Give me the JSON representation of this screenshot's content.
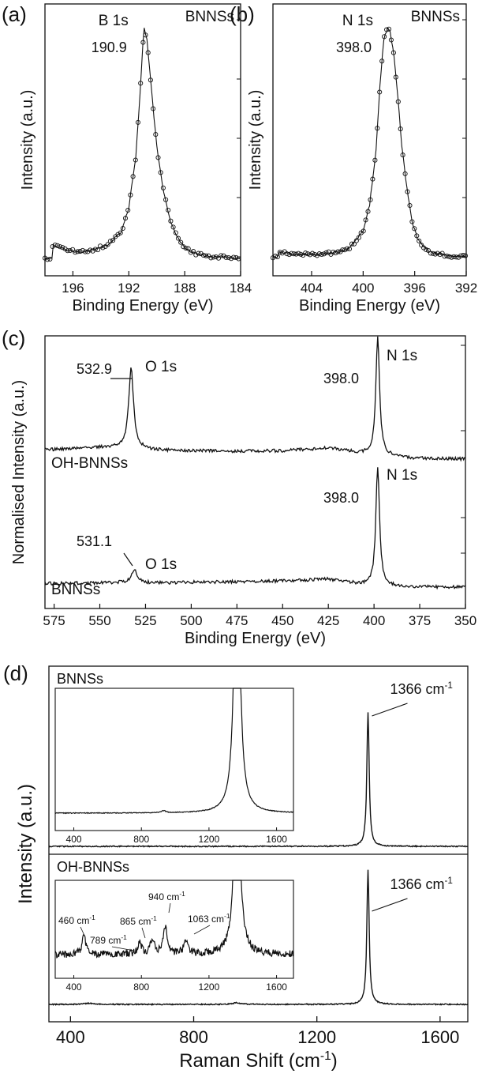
{
  "chart_data": [
    {
      "panel": "(a)",
      "type": "line",
      "legend_text": "BNNSs",
      "xlabel": "Binding Energy (eV)",
      "ylabel": "Intensity (a.u.)",
      "xlim": [
        198,
        184
      ],
      "xticks": [
        196,
        192,
        188,
        184
      ],
      "peak": {
        "label": "B 1s",
        "value_label": "190.9",
        "x": 190.9
      },
      "series": [
        {
          "markers": "open-circle",
          "x": [
            197.5,
            196.5,
            195.5,
            194.5,
            193.5,
            192.5,
            192.0,
            191.5,
            191.2,
            191.0,
            190.9,
            190.7,
            190.5,
            190.2,
            189.9,
            189.5,
            189.0,
            188.5,
            188.0,
            187.5,
            187.0,
            186.0,
            185.0,
            184.0
          ],
          "y": [
            0.08,
            0.06,
            0.05,
            0.06,
            0.08,
            0.14,
            0.24,
            0.45,
            0.72,
            0.92,
            1.0,
            0.95,
            0.82,
            0.62,
            0.45,
            0.3,
            0.18,
            0.11,
            0.07,
            0.05,
            0.04,
            0.03,
            0.03,
            0.02
          ]
        }
      ]
    },
    {
      "panel": "(b)",
      "type": "line",
      "legend_text": "BNNSs",
      "xlabel": "Binding Energy (eV)",
      "ylabel": "Intensity (a.u.)",
      "xlim": [
        407,
        392
      ],
      "xticks": [
        404,
        400,
        396,
        392
      ],
      "peak": {
        "label": "N 1s",
        "value_label": "398.0",
        "x": 398.0
      },
      "series": [
        {
          "markers": "open-circle",
          "x": [
            406.5,
            405.0,
            403.5,
            402.0,
            401.0,
            400.0,
            399.5,
            399.0,
            398.7,
            398.4,
            398.1,
            397.9,
            397.6,
            397.3,
            397.0,
            396.6,
            396.2,
            395.8,
            395.3,
            394.8,
            394.0,
            393.0,
            392.0
          ],
          "y": [
            0.05,
            0.04,
            0.04,
            0.05,
            0.07,
            0.14,
            0.25,
            0.48,
            0.75,
            0.95,
            1.0,
            0.98,
            0.88,
            0.7,
            0.5,
            0.32,
            0.18,
            0.11,
            0.07,
            0.05,
            0.04,
            0.03,
            0.03
          ]
        }
      ]
    },
    {
      "panel": "(c)",
      "type": "line",
      "xlabel": "Binding Energy (eV)",
      "ylabel": "Normalised Intensity (a.u.)",
      "xlim": [
        580,
        350
      ],
      "xticks": [
        575,
        550,
        525,
        500,
        475,
        450,
        425,
        400,
        375,
        350
      ],
      "series": [
        {
          "name": "OH-BNNSs",
          "baseline": [
            [
              580,
              0.56
            ],
            [
              560,
              0.6
            ],
            [
              540,
              0.62
            ],
            [
              520,
              0.55
            ],
            [
              500,
              0.54
            ],
            [
              480,
              0.53
            ],
            [
              450,
              0.54
            ],
            [
              425,
              0.6
            ],
            [
              410,
              0.5
            ],
            [
              402,
              0.46
            ],
            [
              395,
              0.44
            ],
            [
              385,
              0.38
            ],
            [
              370,
              0.36
            ],
            [
              350,
              0.35
            ]
          ],
          "peaks": [
            {
              "x": 532.9,
              "height": 1.85,
              "width": 1.6
            },
            {
              "x": 398.0,
              "height": 2.75,
              "width": 1.2
            }
          ],
          "annotations": [
            {
              "text": "O 1s",
              "value_label": "532.9"
            },
            {
              "text": "N 1s",
              "value_label": "398.0"
            }
          ]
        },
        {
          "name": "BNNSs",
          "baseline": [
            [
              580,
              0.12
            ],
            [
              560,
              0.13
            ],
            [
              540,
              0.14
            ],
            [
              520,
              0.13
            ],
            [
              500,
              0.15
            ],
            [
              480,
              0.16
            ],
            [
              450,
              0.18
            ],
            [
              425,
              0.22
            ],
            [
              410,
              0.12
            ],
            [
              402,
              0.08
            ],
            [
              395,
              0.07
            ],
            [
              385,
              0.05
            ],
            [
              370,
              0.04
            ],
            [
              350,
              0.04
            ]
          ],
          "peaks": [
            {
              "x": 531.1,
              "height": 0.3,
              "width": 2.0
            },
            {
              "x": 398.0,
              "height": 2.75,
              "width": 1.2
            }
          ],
          "annotations": [
            {
              "text": "O 1s",
              "value_label": "531.1"
            },
            {
              "text": "N 1s",
              "value_label": "398.0"
            }
          ]
        }
      ]
    },
    {
      "panel": "(d)",
      "type": "line",
      "xlabel": "Raman Shift (cm",
      "xlabel_superscript": "-1",
      "xlabel_suffix": ")",
      "ylabel": "Intensity (a.u.)",
      "xlim": [
        330,
        1690
      ],
      "xticks": [
        400,
        800,
        1200,
        1600
      ],
      "series": [
        {
          "name": "BNNSs",
          "peak_x": 1366,
          "peak_label": "1366 cm",
          "peak_label_superscript": "-1"
        },
        {
          "name": "OH-BNNSs",
          "peak_x": 1366,
          "peak_label": "1366 cm",
          "peak_label_superscript": "-1"
        }
      ],
      "insets": [
        {
          "name": "BNNSs",
          "xlim": [
            290,
            1700
          ],
          "xticks": [
            400,
            800,
            1200,
            1600
          ],
          "peaks": [
            {
              "x": 930,
              "height": 0.02
            },
            {
              "x": 1366,
              "height": 3.0
            }
          ]
        },
        {
          "name": "OH-BNNSs",
          "xlim": [
            290,
            1700
          ],
          "xticks": [
            400,
            800,
            1200,
            1600
          ],
          "peaks": [
            {
              "x": 460,
              "height": 0.25,
              "label": "460 cm",
              "sup": "-1"
            },
            {
              "x": 789,
              "height": 0.15,
              "label": "789 cm",
              "sup": "-1"
            },
            {
              "x": 865,
              "height": 0.2,
              "label": "865 cm",
              "sup": "-1"
            },
            {
              "x": 940,
              "height": 0.38,
              "label": "940 cm",
              "sup": "-1"
            },
            {
              "x": 1063,
              "height": 0.18,
              "label": "1063 cm",
              "sup": "-1"
            },
            {
              "x": 1366,
              "height": 3.0
            }
          ]
        }
      ]
    }
  ]
}
